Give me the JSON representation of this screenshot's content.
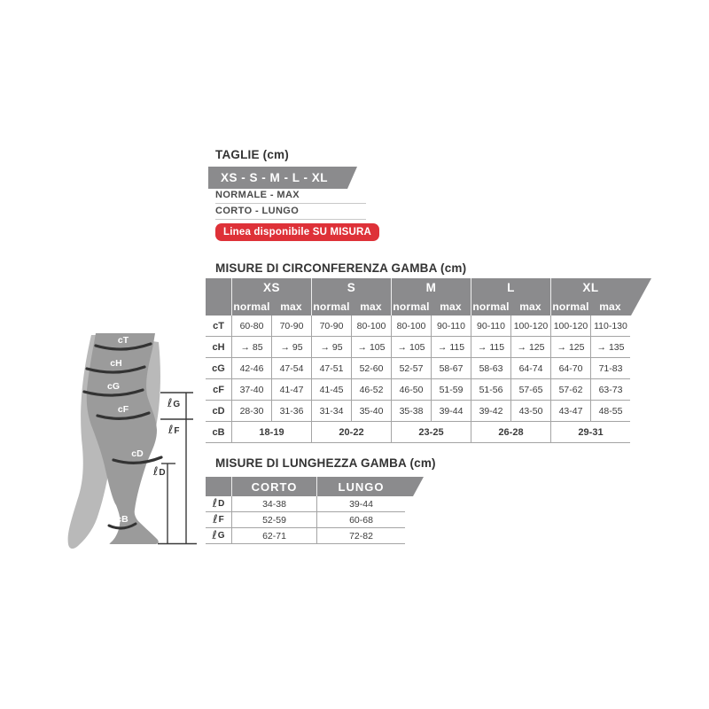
{
  "title_section": {
    "title": "TAGLIE (cm)",
    "sizes_banner": "XS - S - M - L - XL",
    "variant_line1": "NORMALE - MAX",
    "variant_line2": "CORTO - LUNGO",
    "custom_badge": "Linea disponibile SU MISURA"
  },
  "colors": {
    "header_gray": "#8b8b8d",
    "badge_red": "#de3138",
    "text_dark": "#3b3b3b",
    "grid_line": "#a4a4a4",
    "leg_front": "#9b9b9b",
    "leg_back": "#b9b9b9",
    "band_dark": "#333333"
  },
  "leg_diagram": {
    "band_labels": [
      "cT",
      "cH",
      "cG",
      "cF",
      "cD",
      "cB"
    ],
    "length_labels": [
      {
        "prefix": "ℓ",
        "letter": "G"
      },
      {
        "prefix": "ℓ",
        "letter": "F"
      },
      {
        "prefix": "ℓ",
        "letter": "D"
      }
    ]
  },
  "circumference_table": {
    "title": "MISURE DI CIRCONFERENZA GAMBA (cm)",
    "sizes": [
      "XS",
      "S",
      "M",
      "L",
      "XL"
    ],
    "sub_headers": [
      "normal",
      "max"
    ],
    "rows": [
      {
        "label": "cT",
        "values": [
          "60-80",
          "70-90",
          "70-90",
          "80-100",
          "80-100",
          "90-110",
          "90-110",
          "100-120",
          "100-120",
          "110-130"
        ]
      },
      {
        "label": "cH",
        "values": [
          "→ 85",
          "→ 95",
          "→ 95",
          "→ 105",
          "→ 105",
          "→ 115",
          "→ 115",
          "→ 125",
          "→ 125",
          "→ 135"
        ]
      },
      {
        "label": "cG",
        "values": [
          "42-46",
          "47-54",
          "47-51",
          "52-60",
          "52-57",
          "58-67",
          "58-63",
          "64-74",
          "64-70",
          "71-83"
        ]
      },
      {
        "label": "cF",
        "values": [
          "37-40",
          "41-47",
          "41-45",
          "46-52",
          "46-50",
          "51-59",
          "51-56",
          "57-65",
          "57-62",
          "63-73"
        ]
      },
      {
        "label": "cD",
        "values": [
          "28-30",
          "31-36",
          "31-34",
          "35-40",
          "35-38",
          "39-44",
          "39-42",
          "43-50",
          "43-47",
          "48-55"
        ]
      }
    ],
    "merged_row": {
      "label": "cB",
      "values": [
        "18-19",
        "20-22",
        "23-25",
        "26-28",
        "29-31"
      ]
    }
  },
  "length_table": {
    "title": "MISURE DI LUNGHEZZA GAMBA (cm)",
    "columns": [
      "CORTO",
      "LUNGO"
    ],
    "rows": [
      {
        "prefix": "ℓ",
        "letter": "D",
        "values": [
          "34-38",
          "39-44"
        ]
      },
      {
        "prefix": "ℓ",
        "letter": "F",
        "values": [
          "52-59",
          "60-68"
        ]
      },
      {
        "prefix": "ℓ",
        "letter": "G",
        "values": [
          "62-71",
          "72-82"
        ]
      }
    ]
  }
}
